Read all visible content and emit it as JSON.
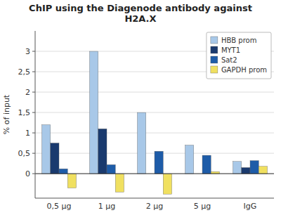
{
  "chart_data": {
    "type": "bar",
    "title": "ChIP using the Diagenode antibody against\nH2A.X",
    "ylabel": "% of input",
    "categories": [
      "0,5 μg",
      "1 μg",
      "2 μg",
      "5 μg",
      "IgG"
    ],
    "series": [
      {
        "name": "HBB prom",
        "color": "#a8c8e8",
        "values": [
          1.2,
          3.0,
          1.5,
          0.7,
          0.3
        ]
      },
      {
        "name": "MYT1",
        "color": "#1a3a6e",
        "values": [
          0.75,
          1.1,
          0.0,
          0.0,
          0.15
        ]
      },
      {
        "name": "Sat2",
        "color": "#1e5ca8",
        "values": [
          0.12,
          0.22,
          0.55,
          0.45,
          0.32
        ]
      },
      {
        "name": "GAPDH prom",
        "color": "#f0e060",
        "values": [
          -0.35,
          -0.45,
          -0.5,
          0.05,
          0.18
        ]
      }
    ],
    "ylim": [
      -0.6,
      3.5
    ],
    "yticks": [
      0,
      {
        "value": 0.5,
        "label": "0,5"
      },
      1,
      {
        "value": 1.5,
        "label": "1,5"
      },
      2,
      {
        "value": 2.5,
        "label": "2,5"
      },
      3
    ],
    "grid": true,
    "legend": "upper right"
  }
}
